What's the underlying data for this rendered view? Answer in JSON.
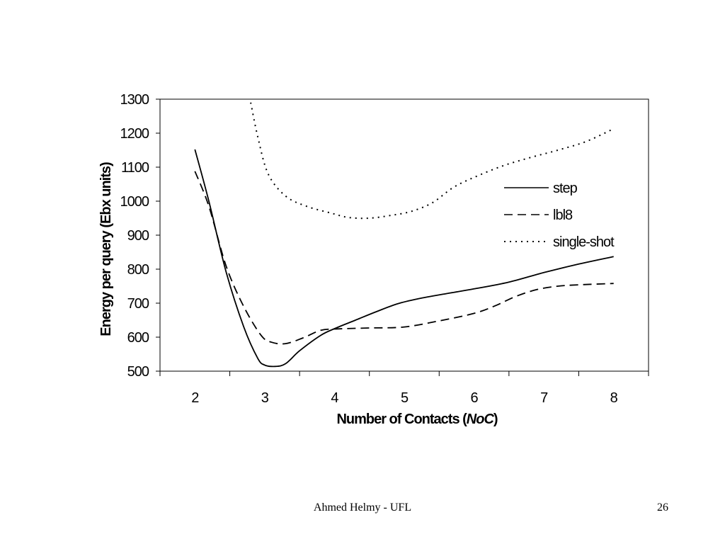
{
  "slide": {
    "footer_author": "Ahmed Helmy - UFL",
    "page_number": "26"
  },
  "chart_data": {
    "type": "line",
    "title": "",
    "xlabel_prefix": "Number of Contacts (",
    "xlabel_italic": "NoC",
    "xlabel_suffix": ")",
    "ylabel": "Energy per query (Ebx units)",
    "categories": [
      "2",
      "3",
      "4",
      "5",
      "6",
      "7",
      "8"
    ],
    "ylim": [
      500,
      1300
    ],
    "yticks": [
      500,
      600,
      700,
      800,
      900,
      1000,
      1100,
      1200,
      1300
    ],
    "grid": false,
    "legend": "top-right (inside plot)",
    "series": [
      {
        "name": "step",
        "style": "solid",
        "color": "#000000",
        "points": [
          [
            2.0,
            1152
          ],
          [
            2.2,
            1000
          ],
          [
            2.45,
            790
          ],
          [
            2.7,
            630
          ],
          [
            2.9,
            538
          ],
          [
            3.0,
            518
          ],
          [
            3.15,
            514
          ],
          [
            3.3,
            522
          ],
          [
            3.5,
            560
          ],
          [
            3.8,
            605
          ],
          [
            4.0,
            625
          ],
          [
            4.3,
            650
          ],
          [
            4.6,
            675
          ],
          [
            4.9,
            698
          ],
          [
            5.2,
            713
          ],
          [
            5.6,
            728
          ],
          [
            6.0,
            742
          ],
          [
            6.5,
            762
          ],
          [
            7.0,
            790
          ],
          [
            7.5,
            815
          ],
          [
            8.0,
            837
          ]
        ]
      },
      {
        "name": "lbl8",
        "style": "dashed",
        "color": "#000000",
        "points": [
          [
            2.0,
            1088
          ],
          [
            2.2,
            985
          ],
          [
            2.45,
            808
          ],
          [
            2.7,
            690
          ],
          [
            2.95,
            605
          ],
          [
            3.1,
            585
          ],
          [
            3.3,
            581
          ],
          [
            3.55,
            598
          ],
          [
            3.8,
            620
          ],
          [
            4.0,
            624
          ],
          [
            4.5,
            627
          ],
          [
            5.0,
            630
          ],
          [
            5.5,
            648
          ],
          [
            6.0,
            670
          ],
          [
            6.3,
            692
          ],
          [
            6.6,
            720
          ],
          [
            6.9,
            740
          ],
          [
            7.2,
            750
          ],
          [
            7.5,
            754
          ],
          [
            8.0,
            758
          ]
        ]
      },
      {
        "name": "single-shot",
        "style": "dotted",
        "color": "#000000",
        "points": [
          [
            2.8,
            1290
          ],
          [
            2.9,
            1190
          ],
          [
            3.05,
            1080
          ],
          [
            3.3,
            1015
          ],
          [
            3.6,
            985
          ],
          [
            3.95,
            965
          ],
          [
            4.2,
            952
          ],
          [
            4.5,
            950
          ],
          [
            4.8,
            958
          ],
          [
            5.1,
            970
          ],
          [
            5.4,
            995
          ],
          [
            5.7,
            1040
          ],
          [
            6.0,
            1070
          ],
          [
            6.4,
            1103
          ],
          [
            6.8,
            1128
          ],
          [
            7.2,
            1150
          ],
          [
            7.6,
            1175
          ],
          [
            8.0,
            1213
          ]
        ]
      }
    ]
  }
}
